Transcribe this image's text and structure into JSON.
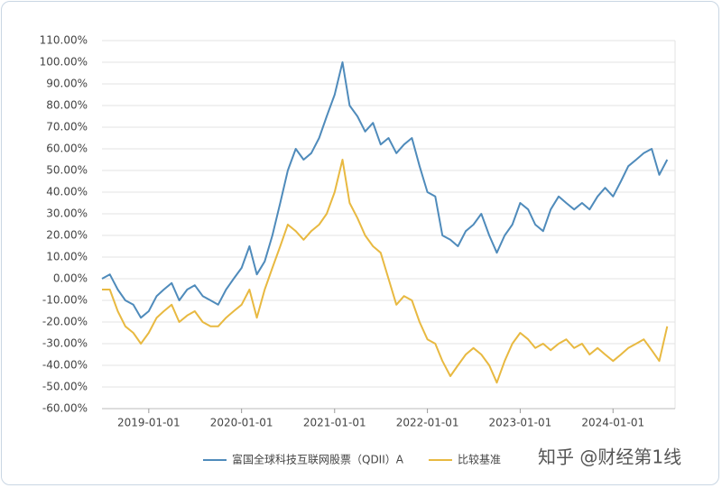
{
  "chart_data": {
    "type": "line",
    "x": [
      "2018-07-01",
      "2018-08-01",
      "2018-09-01",
      "2018-10-01",
      "2018-11-01",
      "2018-12-01",
      "2019-01-01",
      "2019-02-01",
      "2019-03-01",
      "2019-04-01",
      "2019-05-01",
      "2019-06-01",
      "2019-07-01",
      "2019-08-01",
      "2019-09-01",
      "2019-10-01",
      "2019-11-01",
      "2019-12-01",
      "2020-01-01",
      "2020-02-01",
      "2020-03-01",
      "2020-04-01",
      "2020-05-01",
      "2020-06-01",
      "2020-07-01",
      "2020-08-01",
      "2020-09-01",
      "2020-10-01",
      "2020-11-01",
      "2020-12-01",
      "2021-01-01",
      "2021-02-01",
      "2021-03-01",
      "2021-04-01",
      "2021-05-01",
      "2021-06-01",
      "2021-07-01",
      "2021-08-01",
      "2021-09-01",
      "2021-10-01",
      "2021-11-01",
      "2021-12-01",
      "2022-01-01",
      "2022-02-01",
      "2022-03-01",
      "2022-04-01",
      "2022-05-01",
      "2022-06-01",
      "2022-07-01",
      "2022-08-01",
      "2022-09-01",
      "2022-10-01",
      "2022-11-01",
      "2022-12-01",
      "2023-01-01",
      "2023-02-01",
      "2023-03-01",
      "2023-04-01",
      "2023-05-01",
      "2023-06-01",
      "2023-07-01",
      "2023-08-01",
      "2023-09-01",
      "2023-10-01",
      "2023-11-01",
      "2023-12-01",
      "2024-01-01",
      "2024-02-01",
      "2024-03-01",
      "2024-04-01",
      "2024-05-01",
      "2024-06-01",
      "2024-07-01",
      "2024-08-01"
    ],
    "series": [
      {
        "name": "富国全球科技互联网股票（QDII）A",
        "color": "#4f8bbb",
        "values": [
          0,
          2,
          -5,
          -10,
          -12,
          -18,
          -15,
          -8,
          -5,
          -2,
          -10,
          -5,
          -3,
          -8,
          -10,
          -12,
          -5,
          0,
          5,
          15,
          2,
          8,
          20,
          35,
          50,
          60,
          55,
          58,
          65,
          75,
          85,
          100,
          80,
          75,
          68,
          72,
          62,
          65,
          58,
          62,
          65,
          52,
          40,
          38,
          20,
          18,
          15,
          22,
          25,
          30,
          20,
          12,
          20,
          25,
          35,
          32,
          25,
          22,
          32,
          38,
          35,
          32,
          35,
          32,
          38,
          42,
          38,
          45,
          52,
          55,
          58,
          60,
          48,
          55
        ]
      },
      {
        "name": "比较基准",
        "color": "#e8b941",
        "values": [
          -5,
          -5,
          -15,
          -22,
          -25,
          -30,
          -25,
          -18,
          -15,
          -12,
          -20,
          -17,
          -15,
          -20,
          -22,
          -22,
          -18,
          -15,
          -12,
          -5,
          -18,
          -5,
          5,
          15,
          25,
          22,
          18,
          22,
          25,
          30,
          40,
          55,
          35,
          28,
          20,
          15,
          12,
          0,
          -12,
          -8,
          -10,
          -20,
          -28,
          -30,
          -38,
          -45,
          -40,
          -35,
          -32,
          -35,
          -40,
          -48,
          -38,
          -30,
          -25,
          -28,
          -32,
          -30,
          -33,
          -30,
          -28,
          -32,
          -30,
          -35,
          -32,
          -35,
          -38,
          -35,
          -32,
          -30,
          -28,
          -33,
          -38,
          -22
        ]
      }
    ],
    "xlim": [
      "2018-07-01",
      "2024-09-01"
    ],
    "xticks": [
      "2019-01-01",
      "2020-01-01",
      "2021-01-01",
      "2022-01-01",
      "2023-01-01",
      "2024-01-01"
    ],
    "ylim": [
      -60,
      110
    ],
    "yticks": [
      {
        "value": -60,
        "label": "-60.00%"
      },
      {
        "value": -50,
        "label": "-50.00%"
      },
      {
        "value": -40,
        "label": "-40.00%"
      },
      {
        "value": -30,
        "label": "-30.00%"
      },
      {
        "value": -20,
        "label": "-20.00%"
      },
      {
        "value": -10,
        "label": "-10.00%"
      },
      {
        "value": 0,
        "label": "0.00%"
      },
      {
        "value": 10,
        "label": "10.00%"
      },
      {
        "value": 20,
        "label": "20.00%"
      },
      {
        "value": 30,
        "label": "30.00%"
      },
      {
        "value": 40,
        "label": "40.00%"
      },
      {
        "value": 50,
        "label": "50.00%"
      },
      {
        "value": 60,
        "label": "60.00%"
      },
      {
        "value": 70,
        "label": "70.00%"
      },
      {
        "value": 80,
        "label": "80.00%"
      },
      {
        "value": 90,
        "label": "90.00%"
      },
      {
        "value": 100,
        "label": "100.00%"
      },
      {
        "value": 110,
        "label": "110.00%"
      }
    ],
    "grid": true,
    "legend": "bottom",
    "watermark": "知乎 @财经第1线"
  }
}
